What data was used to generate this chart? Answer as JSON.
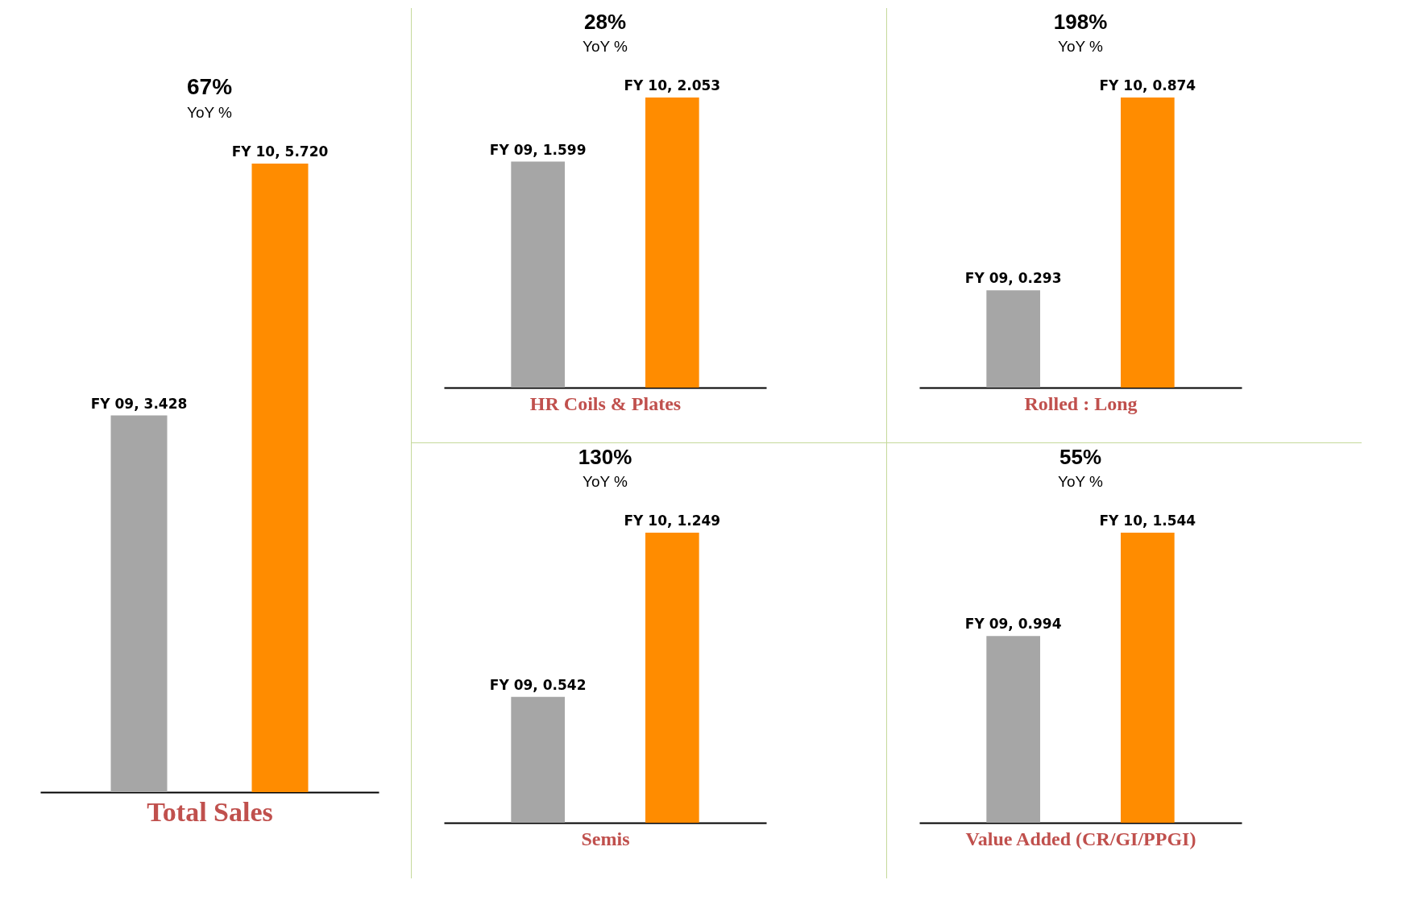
{
  "chart_data": [
    {
      "type": "bar",
      "xlabel": "Total Sales",
      "categories": [
        null,
        null
      ],
      "values": [
        3.428,
        5.72
      ],
      "colors": [
        "#a6a6a6",
        "#ff8c00"
      ],
      "value_labels": [
        "FY 09, 3.428",
        "FY 10, 5.720"
      ],
      "annotations": [
        "67%",
        "YoY %"
      ]
    },
    {
      "type": "bar",
      "xlabel": "HR Coils & Plates",
      "categories": [
        null,
        null
      ],
      "values": [
        1.599,
        2.053
      ],
      "colors": [
        "#a6a6a6",
        "#ff8c00"
      ],
      "value_labels": [
        "FY 09, 1.599",
        "FY 10, 2.053"
      ],
      "annotations": [
        "28%",
        "YoY %"
      ]
    },
    {
      "type": "bar",
      "xlabel": "Rolled : Long",
      "categories": [
        null,
        null
      ],
      "values": [
        0.293,
        0.874
      ],
      "colors": [
        "#a6a6a6",
        "#ff8c00"
      ],
      "value_labels": [
        "FY 09, 0.293",
        "FY 10, 0.874"
      ],
      "annotations": [
        "198%",
        "YoY %"
      ]
    },
    {
      "type": "bar",
      "xlabel": "Semis",
      "categories": [
        null,
        null
      ],
      "values": [
        0.542,
        1.249
      ],
      "colors": [
        "#a6a6a6",
        "#ff8c00"
      ],
      "value_labels": [
        "FY 09, 0.542",
        "FY 10, 1.249"
      ],
      "annotations": [
        "130%",
        "YoY %"
      ]
    },
    {
      "type": "bar",
      "xlabel": "Value Added (CR/GI/PPGI)",
      "categories": [
        null,
        null
      ],
      "values": [
        0.994,
        1.544
      ],
      "colors": [
        "#a6a6a6",
        "#ff8c00"
      ],
      "value_labels": [
        "FY 09, 0.994",
        "FY 10, 1.544"
      ],
      "annotations": [
        "55%",
        "YoY %"
      ]
    }
  ]
}
